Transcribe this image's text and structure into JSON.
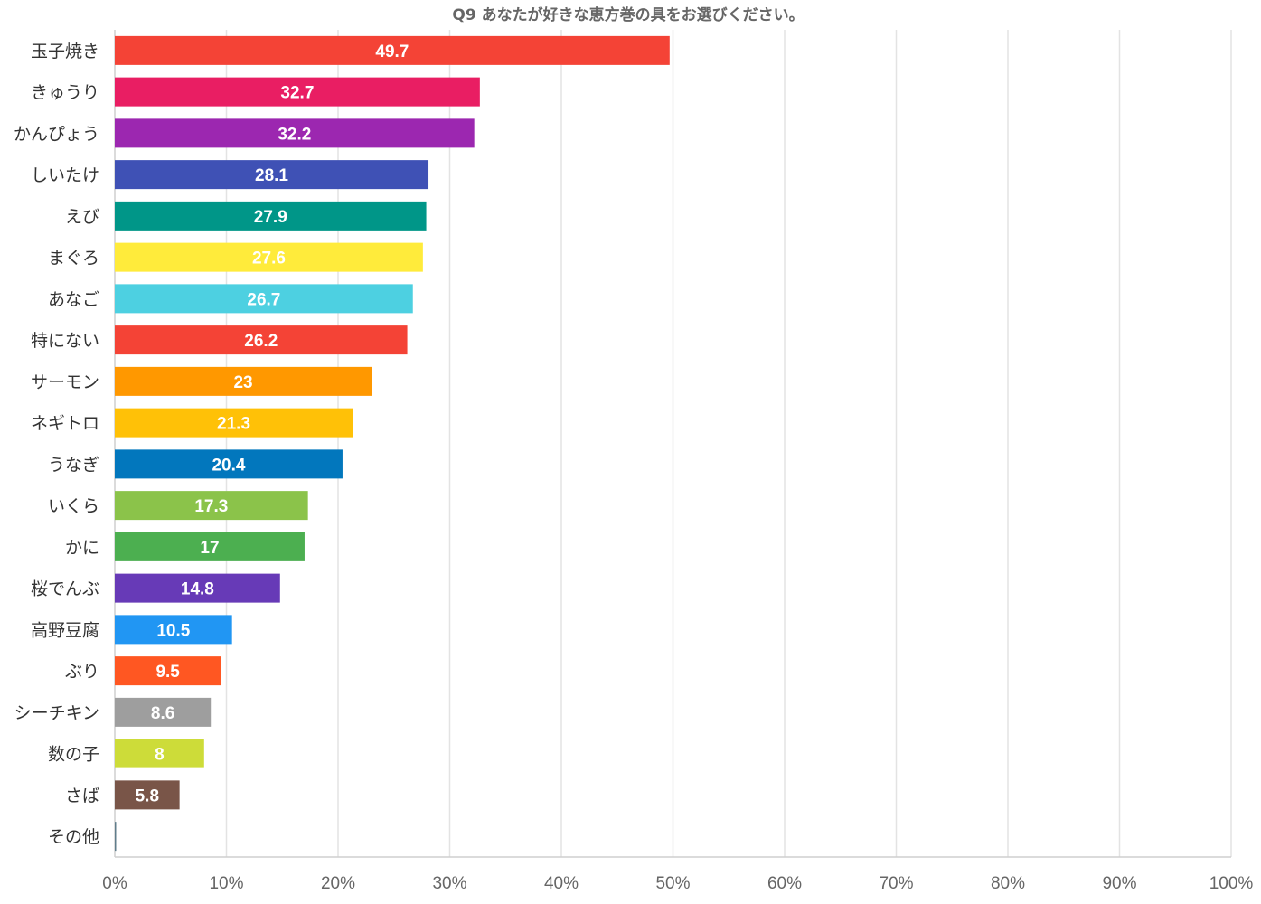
{
  "chart_data": {
    "type": "bar",
    "orientation": "horizontal",
    "title": "Q9 あなたが好きな恵方巻の具をお選びください。",
    "xlabel": "",
    "ylabel": "",
    "xlim": [
      0,
      100
    ],
    "x_ticks": [
      "0%",
      "10%",
      "20%",
      "30%",
      "40%",
      "50%",
      "60%",
      "70%",
      "80%",
      "90%",
      "100%"
    ],
    "grid": true,
    "legend": "none",
    "categories": [
      "玉子焼き",
      "きゅうり",
      "かんぴょう",
      "しいたけ",
      "えび",
      "まぐろ",
      "あなご",
      "特にない",
      "サーモン",
      "ネギトロ",
      "うなぎ",
      "いくら",
      "かに",
      "桜でんぶ",
      "高野豆腐",
      "ぶり",
      "シーチキン",
      "数の子",
      "さば",
      "その他"
    ],
    "values": [
      49.7,
      32.7,
      32.2,
      28.1,
      27.9,
      27.6,
      26.7,
      26.2,
      23,
      21.3,
      20.4,
      17.3,
      17,
      14.8,
      10.5,
      9.5,
      8.6,
      8,
      5.8,
      0
    ],
    "value_labels": [
      "49.7",
      "32.7",
      "32.2",
      "28.1",
      "27.9",
      "27.6",
      "26.7",
      "26.2",
      "23",
      "21.3",
      "20.4",
      "17.3",
      "17",
      "14.8",
      "10.5",
      "9.5",
      "8.6",
      "8",
      "5.8",
      ""
    ],
    "colors": [
      "#f44336",
      "#e91e63",
      "#9c27b0",
      "#3f51b5",
      "#009688",
      "#ffeb3b",
      "#4dd0e1",
      "#f44336",
      "#ff9800",
      "#ffc107",
      "#0277bd",
      "#8bc34a",
      "#4caf50",
      "#673ab7",
      "#2196f3",
      "#ff5722",
      "#9e9e9e",
      "#cddc39",
      "#795548",
      "#607d8b"
    ]
  }
}
